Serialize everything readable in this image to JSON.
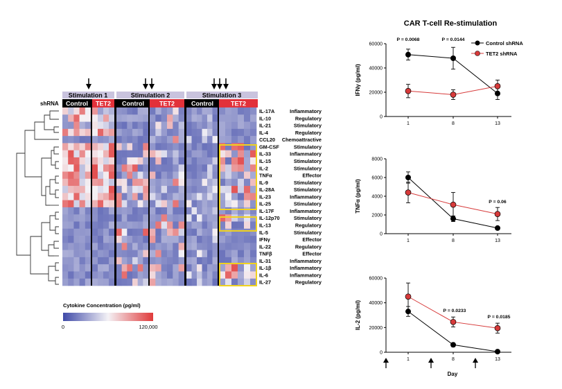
{
  "heatmap": {
    "shrna_label": "shRNA",
    "stimulation_labels": [
      "Stimulation 1",
      "Stimulation 2",
      "Stimulation 3"
    ],
    "group_labels": {
      "control": "Control",
      "tet2": "TET2"
    },
    "legend_title": "Cytokine Concentration (pg/ml)",
    "legend_min": "0",
    "legend_max": "120,000",
    "colors": {
      "low": "#3f4aa8",
      "mid": "#f4f2f6",
      "high": "#e03a3a",
      "header": "#c9c3de",
      "tet2_header": "#e2313a",
      "highlight": "#f0d21e"
    },
    "cytokines": [
      {
        "name": "IL-17A",
        "category": "Inflammatory"
      },
      {
        "name": "IL-10",
        "category": "Regulatory"
      },
      {
        "name": "IL-21",
        "category": "Stimulatory"
      },
      {
        "name": "IL-4",
        "category": "Regulatory"
      },
      {
        "name": "CCL20",
        "category": "Chemoattractive"
      },
      {
        "name": "GM-CSF",
        "category": "Stimulatory"
      },
      {
        "name": "IL-33",
        "category": "Inflammatory"
      },
      {
        "name": "IL-15",
        "category": "Stimulatory"
      },
      {
        "name": "IL-2",
        "category": "Stimulatory"
      },
      {
        "name": "TNFα",
        "category": "Effector"
      },
      {
        "name": "IL-9",
        "category": "Stimulatory"
      },
      {
        "name": "IL-28A",
        "category": "Stimulatory"
      },
      {
        "name": "IL-23",
        "category": "Inflammatory"
      },
      {
        "name": "IL-25",
        "category": "Stimulatory"
      },
      {
        "name": "IL-17F",
        "category": "Inflammatory"
      },
      {
        "name": "IL-12p70",
        "category": "Stimulatory"
      },
      {
        "name": "IL-13",
        "category": "Regulatory"
      },
      {
        "name": "IL-5",
        "category": "Stimulatory"
      },
      {
        "name": "IFNγ",
        "category": "Effector"
      },
      {
        "name": "IL-22",
        "category": "Regulatory"
      },
      {
        "name": "TNFβ",
        "category": "Effector"
      },
      {
        "name": "IL-31",
        "category": "Inflammatory"
      },
      {
        "name": "IL-1β",
        "category": "Inflammatory"
      },
      {
        "name": "IL-6",
        "category": "Inflammatory"
      },
      {
        "name": "IL-27",
        "category": "Regulatory"
      }
    ]
  },
  "line_panel_title": "CAR T-cell Re-stimulation",
  "chart_data": [
    {
      "type": "line",
      "x": [
        1,
        8,
        13
      ],
      "ylabel": "IFNγ (pg/ml)",
      "ylim": [
        0,
        60000
      ],
      "yticks": [
        "0",
        "20000",
        "40000",
        "60000"
      ],
      "xticks": [
        "1",
        "8",
        "13"
      ],
      "series": [
        {
          "name": "Control shRNA",
          "color": "#000000",
          "values": [
            51000,
            48000,
            19000
          ],
          "errors": [
            4500,
            9000,
            5000
          ]
        },
        {
          "name": "TET2 shRNA",
          "color": "#d73a3a",
          "values": [
            21000,
            18000,
            25000
          ],
          "errors": [
            5500,
            4000,
            5000
          ]
        }
      ],
      "legend": [
        "Control shRNA",
        "TET2 shRNA"
      ],
      "annotations": [
        "P = 0.0068",
        "P = 0.0144"
      ]
    },
    {
      "type": "line",
      "x": [
        1,
        8,
        13
      ],
      "ylabel": "TNFα (pg/ml)",
      "ylim": [
        0,
        8000
      ],
      "yticks": [
        "0",
        "2000",
        "4000",
        "6000",
        "8000"
      ],
      "xticks": [
        "1",
        "8",
        "13"
      ],
      "series": [
        {
          "name": "Control shRNA",
          "color": "#000000",
          "values": [
            6000,
            1600,
            600
          ],
          "errors": [
            600,
            300,
            100
          ]
        },
        {
          "name": "TET2 shRNA",
          "color": "#d73a3a",
          "values": [
            4400,
            3100,
            2100
          ],
          "errors": [
            1100,
            1300,
            700
          ]
        }
      ],
      "annotations": [
        "P = 0.06"
      ]
    },
    {
      "type": "line",
      "x": [
        1,
        8,
        13
      ],
      "ylabel": "IL-2 (pg/ml)",
      "xlabel": "Day",
      "ylim": [
        0,
        60000
      ],
      "yticks": [
        "0",
        "20000",
        "40000",
        "60000"
      ],
      "xticks": [
        "1",
        "8",
        "13"
      ],
      "series": [
        {
          "name": "Control shRNA",
          "color": "#000000",
          "values": [
            33000,
            6000,
            500
          ],
          "errors": [
            4000,
            1500,
            300
          ]
        },
        {
          "name": "TET2 shRNA",
          "color": "#d73a3a",
          "values": [
            45000,
            24500,
            19500
          ],
          "errors": [
            11000,
            4000,
            4000
          ]
        }
      ],
      "annotations": [
        "P = 0.0233",
        "P = 0.0185"
      ]
    }
  ]
}
